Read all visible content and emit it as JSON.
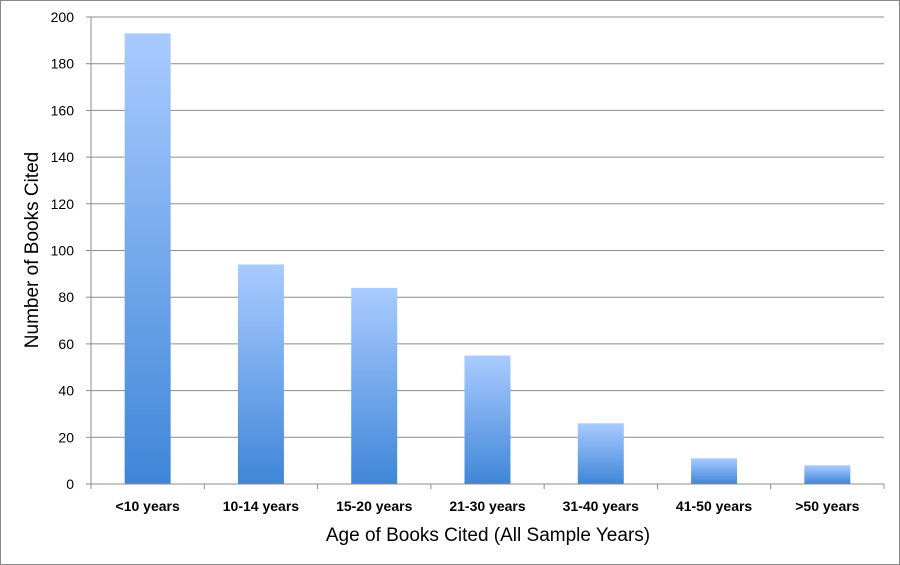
{
  "chart_data": {
    "type": "bar",
    "categories": [
      "<10 years",
      "10-14 years",
      "15-20 years",
      "21-30 years",
      "31-40 years",
      "41-50 years",
      ">50 years"
    ],
    "values": [
      193,
      94,
      84,
      55,
      26,
      11,
      8
    ],
    "xlabel": "Age of Books Cited (All Sample Years)",
    "ylabel": "Number of Books Cited",
    "ylim": [
      0,
      200
    ],
    "yticks": [
      0,
      20,
      40,
      60,
      80,
      100,
      120,
      140,
      160,
      180,
      200
    ],
    "grid": true,
    "legend": "none",
    "colors": {
      "bar_top": "#a9cbff",
      "bar_bottom": "#3f86d8",
      "grid": "#8c8c8c"
    }
  }
}
